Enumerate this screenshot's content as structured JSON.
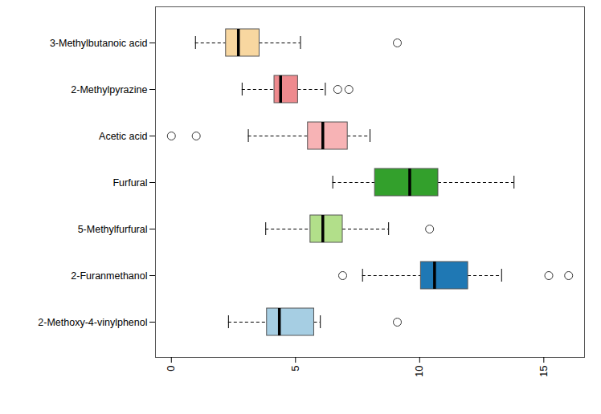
{
  "chart_data": {
    "type": "boxplot",
    "orientation": "horizontal",
    "categories": [
      "3-Methylbutanoic acid",
      "2-Methylpyrazine",
      "Acetic acid",
      "Furfural",
      "5-Methylfurfural",
      "2-Furanmethanol",
      "2-Methoxy-4-vinylphenol"
    ],
    "lower_whisker": [
      0.97,
      2.85,
      3.1,
      6.5,
      3.8,
      7.7,
      2.3
    ],
    "q1": [
      2.2,
      4.15,
      5.5,
      8.2,
      5.6,
      10.05,
      3.85
    ],
    "median": [
      2.7,
      4.4,
      6.1,
      9.6,
      6.1,
      10.6,
      4.35
    ],
    "q3": [
      3.55,
      5.1,
      7.1,
      10.75,
      6.9,
      11.95,
      5.75
    ],
    "upper_whisker": [
      5.2,
      6.2,
      8.0,
      13.8,
      8.75,
      13.3,
      6.0
    ],
    "outliers": [
      [
        9.1
      ],
      [
        6.7,
        7.15
      ],
      [
        0,
        1
      ],
      [],
      [
        10.4
      ],
      [
        6.9,
        15.2,
        16.0
      ],
      [
        9.1
      ]
    ],
    "colors": [
      "#f8d7a0",
      "#ee8a8e",
      "#f7b3b5",
      "#33a02c",
      "#b2df8a",
      "#1f78b4",
      "#a6cee3"
    ],
    "xlim": [
      -0.64,
      16.64
    ],
    "xticks": [
      0,
      5,
      10,
      15
    ],
    "grid": false
  }
}
